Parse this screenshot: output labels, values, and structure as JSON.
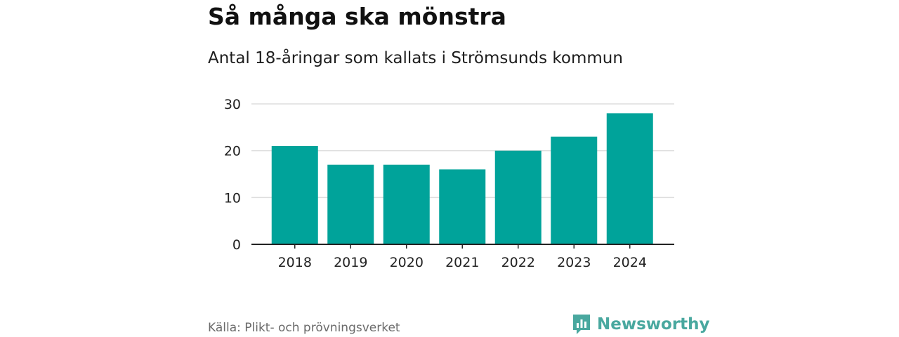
{
  "header": {
    "title": "Så många ska mönstra",
    "subtitle": "Antal 18-åringar som kallats i Strömsunds kommun"
  },
  "footer": {
    "source": "Källa: Plikt- och prövningsverket",
    "brand": "Newsworthy",
    "brand_icon": "bar-chart-speech-bubble-icon"
  },
  "colors": {
    "bar": "#00a39a",
    "brand": "#49a89f",
    "grid": "#dddddd",
    "axis": "#222222"
  },
  "chart_data": {
    "type": "bar",
    "categories": [
      "2018",
      "2019",
      "2020",
      "2021",
      "2022",
      "2023",
      "2024"
    ],
    "values": [
      21,
      17,
      17,
      16,
      20,
      23,
      28
    ],
    "title": "Så många ska mönstra",
    "subtitle": "Antal 18-åringar som kallats i Strömsunds kommun",
    "xlabel": "",
    "ylabel": "",
    "ylim": [
      0,
      30
    ],
    "yticks": [
      0,
      10,
      20,
      30
    ],
    "grid": true,
    "legend": "none"
  }
}
